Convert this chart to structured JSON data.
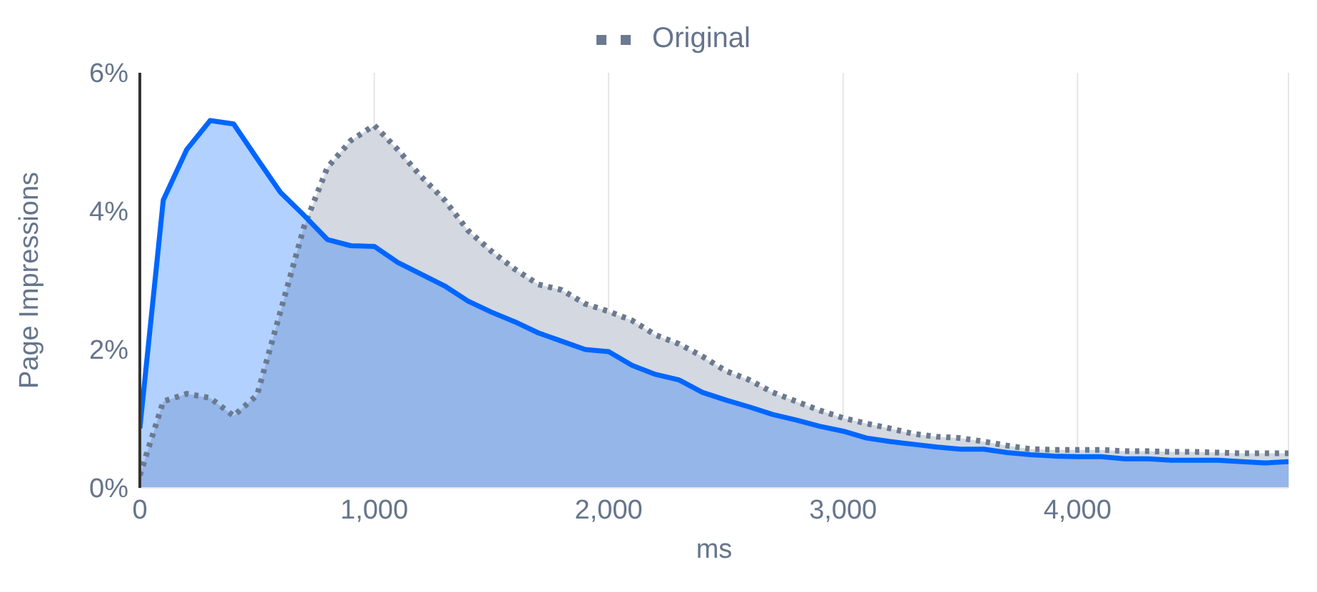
{
  "chart_data": {
    "type": "area",
    "xlabel": "ms",
    "ylabel": "Page Impressions",
    "x": [
      0,
      100,
      200,
      300,
      400,
      500,
      600,
      700,
      800,
      900,
      1000,
      1100,
      1200,
      1300,
      1400,
      1500,
      1600,
      1700,
      1800,
      1900,
      2000,
      2100,
      2200,
      2300,
      2400,
      2500,
      2600,
      2700,
      2800,
      2900,
      3000,
      3100,
      3200,
      3300,
      3400,
      3500,
      3600,
      3700,
      3800,
      3900,
      4000,
      4100,
      4200,
      4300,
      4400,
      4500,
      4600,
      4700,
      4800,
      4900
    ],
    "series": [
      {
        "name": "Original",
        "color": "#6b7a90",
        "line_style": "dotted",
        "values": [
          0.18,
          1.25,
          1.36,
          1.3,
          1.04,
          1.34,
          2.55,
          3.77,
          4.63,
          5.02,
          5.24,
          4.89,
          4.5,
          4.16,
          3.72,
          3.42,
          3.16,
          2.94,
          2.86,
          2.66,
          2.55,
          2.42,
          2.21,
          2.08,
          1.9,
          1.69,
          1.56,
          1.38,
          1.25,
          1.12,
          1.01,
          0.93,
          0.86,
          0.78,
          0.74,
          0.72,
          0.67,
          0.61,
          0.56,
          0.55,
          0.55,
          0.55,
          0.53,
          0.53,
          0.52,
          0.52,
          0.51,
          0.5,
          0.5,
          0.5
        ]
      },
      {
        "color": "#0066ff",
        "line_style": "solid",
        "values": [
          0.86,
          4.16,
          4.89,
          5.31,
          5.26,
          4.76,
          4.27,
          3.94,
          3.59,
          3.5,
          3.49,
          3.26,
          3.09,
          2.92,
          2.7,
          2.54,
          2.4,
          2.24,
          2.12,
          2,
          1.97,
          1.77,
          1.64,
          1.56,
          1.38,
          1.27,
          1.17,
          1.06,
          0.98,
          0.89,
          0.82,
          0.72,
          0.67,
          0.63,
          0.59,
          0.56,
          0.56,
          0.51,
          0.48,
          0.46,
          0.45,
          0.45,
          0.42,
          0.42,
          0.4,
          0.4,
          0.4,
          0.38,
          0.36,
          0.38
        ]
      }
    ],
    "xlim": [
      0,
      4900
    ],
    "xticks": [
      0,
      {
        "value": 1000,
        "label": "1,000"
      },
      {
        "value": 2000,
        "label": "2,000"
      },
      {
        "value": 3000,
        "label": "3,000"
      },
      {
        "value": 4000,
        "label": "4,000"
      }
    ],
    "ylim": [
      0,
      6
    ],
    "yticks": [
      {
        "value": 0,
        "label": "0%"
      },
      {
        "value": 2,
        "label": "2%"
      },
      {
        "value": 4,
        "label": "4%"
      },
      {
        "value": 6,
        "label": "6%"
      }
    ],
    "grid": "x",
    "legend": "top",
    "marker": "none"
  }
}
